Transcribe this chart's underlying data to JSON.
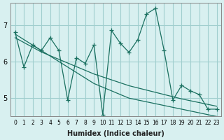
{
  "xlabel": "Humidex (Indice chaleur)",
  "ylabel": "",
  "bg_color": "#d8f0f0",
  "grid_color": "#a0cece",
  "line_color": "#1a7060",
  "marker": "+",
  "x": [
    0,
    1,
    2,
    3,
    4,
    5,
    6,
    7,
    8,
    9,
    10,
    11,
    12,
    13,
    14,
    15,
    16,
    17,
    18,
    19,
    20,
    21,
    22,
    23
  ],
  "y_main": [
    6.8,
    5.85,
    6.45,
    6.3,
    6.65,
    6.3,
    4.95,
    6.1,
    5.95,
    6.45,
    4.55,
    6.85,
    6.5,
    6.25,
    6.6,
    7.3,
    7.45,
    6.3,
    4.95,
    5.35,
    5.2,
    5.1,
    4.7,
    4.7
  ],
  "y_trend1": [
    6.75,
    6.6,
    6.45,
    6.3,
    6.15,
    6.0,
    5.85,
    5.7,
    5.55,
    5.4,
    5.3,
    5.2,
    5.1,
    5.0,
    4.95,
    4.9,
    4.85,
    4.8,
    4.75,
    4.7,
    4.65,
    4.6,
    4.55,
    4.5
  ],
  "y_trend2": [
    6.65,
    6.52,
    6.39,
    6.26,
    6.16,
    6.06,
    5.96,
    5.86,
    5.76,
    5.66,
    5.58,
    5.5,
    5.42,
    5.34,
    5.28,
    5.22,
    5.16,
    5.1,
    5.04,
    4.98,
    4.93,
    4.88,
    4.83,
    4.78
  ],
  "ylim": [
    4.5,
    7.6
  ],
  "xlim": [
    -0.5,
    23.5
  ],
  "yticks": [
    5,
    6,
    7
  ],
  "xticks": [
    0,
    1,
    2,
    3,
    4,
    5,
    6,
    7,
    8,
    9,
    10,
    11,
    12,
    13,
    14,
    15,
    16,
    17,
    18,
    19,
    20,
    21,
    22,
    23
  ],
  "xtick_labels": [
    "0",
    "1",
    "2",
    "3",
    "4",
    "5",
    "6",
    "7",
    "8",
    "9",
    "10",
    "11",
    "12",
    "13",
    "14",
    "15",
    "16",
    "17",
    "18",
    "19",
    "20",
    "21",
    "22",
    "23"
  ]
}
